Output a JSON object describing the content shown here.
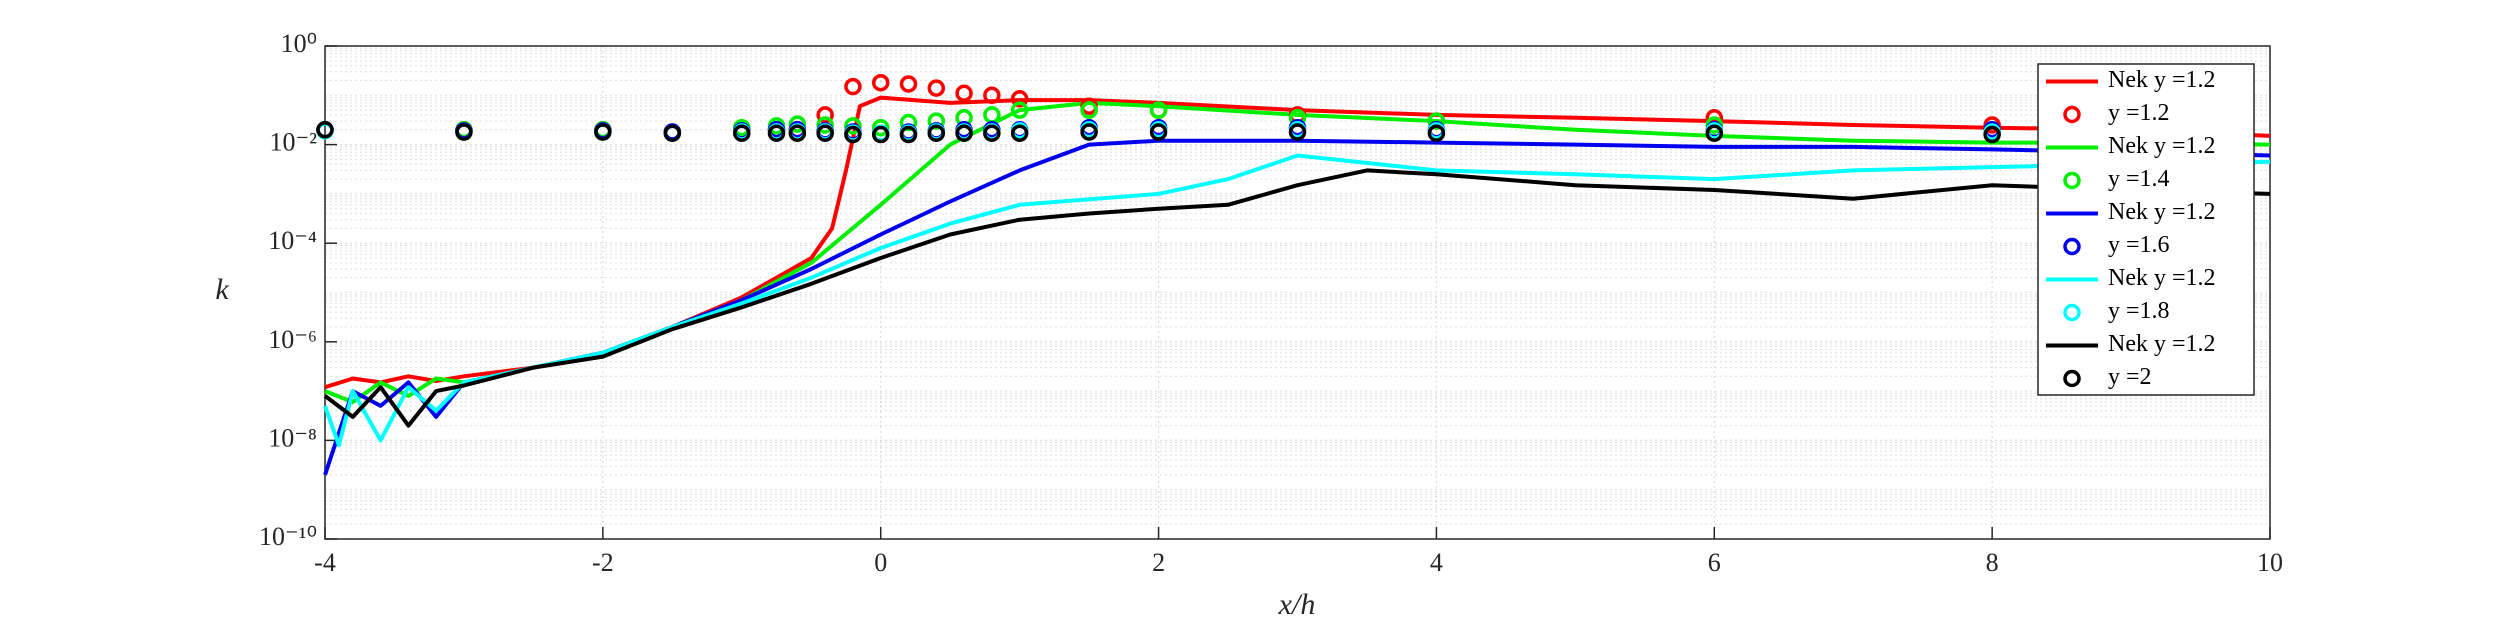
{
  "chart_data": {
    "type": "line",
    "xlabel": "x/h",
    "ylabel": "k",
    "xlim": [
      -4,
      10
    ],
    "xticks": [
      -4,
      -2,
      0,
      2,
      4,
      6,
      8,
      10
    ],
    "ylim": [
      1e-10,
      1
    ],
    "log_y": true,
    "grid": true,
    "legend": "northeast",
    "yticks": [
      {
        "value": 1e-10,
        "label": "10⁻¹⁰"
      },
      {
        "value": 1e-08,
        "label": "10⁻⁸"
      },
      {
        "value": 1e-06,
        "label": "10⁻⁶"
      },
      {
        "value": 0.0001,
        "label": "10⁻⁴"
      },
      {
        "value": 0.01,
        "label": "10⁻²"
      },
      {
        "value": 1,
        "label": "10⁰"
      }
    ],
    "series": [
      {
        "name": "Nek y =1.2",
        "color": "#ff0000",
        "kind": "line",
        "x": [
          -4,
          -3.8,
          -3.6,
          -3.4,
          -3.2,
          -3,
          -2.5,
          -2,
          -1.5,
          -1,
          -0.5,
          -0.35,
          -0.25,
          -0.15,
          0,
          0.5,
          1,
          1.5,
          2,
          3,
          4,
          5,
          6,
          7,
          8,
          9,
          10
        ],
        "values": [
          1.2e-07,
          1.8e-07,
          1.5e-07,
          2e-07,
          1.6e-07,
          2e-07,
          3e-07,
          6e-07,
          2e-06,
          8e-06,
          5e-05,
          0.0002,
          0.003,
          0.06,
          0.09,
          0.07,
          0.08,
          0.08,
          0.07,
          0.05,
          0.04,
          0.035,
          0.03,
          0.025,
          0.022,
          0.02,
          0.015
        ]
      },
      {
        "name": "y =1.2",
        "color": "#ff0000",
        "kind": "scatter",
        "x": [
          -4,
          -3,
          -2,
          -1.5,
          -1,
          -0.75,
          -0.6,
          -0.4,
          -0.2,
          0,
          0.2,
          0.4,
          0.6,
          0.8,
          1,
          1.5,
          2,
          3,
          4,
          6,
          8
        ],
        "values": [
          0.02,
          0.02,
          0.02,
          0.018,
          0.02,
          0.02,
          0.02,
          0.04,
          0.15,
          0.18,
          0.17,
          0.14,
          0.11,
          0.1,
          0.085,
          0.06,
          0.05,
          0.04,
          0.03,
          0.035,
          0.025
        ]
      },
      {
        "name": "Nek y =1.2",
        "color": "#00ee00",
        "kind": "line",
        "x": [
          -4,
          -3.8,
          -3.6,
          -3.4,
          -3.2,
          -3,
          -2.5,
          -2,
          -1.5,
          -1,
          -0.5,
          0,
          0.5,
          1,
          1.5,
          2,
          3,
          4,
          5,
          6,
          7,
          8,
          9,
          10
        ],
        "values": [
          1e-07,
          6e-08,
          1.5e-07,
          8e-08,
          1.8e-07,
          1.5e-07,
          3e-07,
          6e-07,
          2e-06,
          7e-06,
          4e-05,
          0.0006,
          0.01,
          0.05,
          0.07,
          0.06,
          0.04,
          0.03,
          0.02,
          0.015,
          0.012,
          0.011,
          0.011,
          0.01
        ]
      },
      {
        "name": "y =1.4",
        "color": "#00ee00",
        "kind": "scatter",
        "x": [
          -4,
          -3,
          -2,
          -1.5,
          -1,
          -0.75,
          -0.6,
          -0.4,
          -0.2,
          0,
          0.2,
          0.4,
          0.6,
          0.8,
          1,
          1.5,
          2,
          3,
          4,
          6,
          8
        ],
        "values": [
          0.02,
          0.02,
          0.02,
          0.018,
          0.022,
          0.024,
          0.026,
          0.025,
          0.024,
          0.022,
          0.028,
          0.03,
          0.035,
          0.04,
          0.05,
          0.05,
          0.05,
          0.035,
          0.03,
          0.025,
          0.02
        ]
      },
      {
        "name": "Nek y =1.2",
        "color": "#0000ee",
        "kind": "line",
        "x": [
          -4,
          -3.8,
          -3.6,
          -3.4,
          -3.2,
          -3,
          -2.5,
          -2,
          -1.5,
          -1,
          -0.5,
          0,
          0.5,
          1,
          1.5,
          2,
          3,
          4,
          5,
          6,
          7,
          8,
          9,
          10
        ],
        "values": [
          2e-09,
          1e-07,
          5e-08,
          1.5e-07,
          3e-08,
          1.5e-07,
          3e-07,
          6e-07,
          2e-06,
          7e-06,
          3e-05,
          0.00015,
          0.0007,
          0.003,
          0.01,
          0.012,
          0.012,
          0.011,
          0.01,
          0.009,
          0.009,
          0.008,
          0.007,
          0.006
        ]
      },
      {
        "name": "y =1.6",
        "color": "#0000ee",
        "kind": "scatter",
        "x": [
          -4,
          -3,
          -2,
          -1.5,
          -1,
          -0.75,
          -0.6,
          -0.4,
          -0.2,
          0,
          0.2,
          0.4,
          0.6,
          0.8,
          1,
          1.5,
          2,
          3,
          4,
          6,
          8
        ],
        "values": [
          0.02,
          0.019,
          0.019,
          0.018,
          0.019,
          0.02,
          0.02,
          0.019,
          0.018,
          0.017,
          0.018,
          0.019,
          0.02,
          0.02,
          0.02,
          0.022,
          0.022,
          0.022,
          0.02,
          0.02,
          0.02
        ]
      },
      {
        "name": "Nek y =1.2",
        "color": "#00ffff",
        "kind": "line",
        "x": [
          -4,
          -3.9,
          -3.8,
          -3.6,
          -3.4,
          -3.2,
          -3,
          -2.5,
          -2,
          -1.5,
          -1,
          -0.5,
          0,
          0.5,
          1,
          2,
          2.5,
          3,
          4,
          5,
          6,
          7,
          8,
          9,
          10
        ],
        "values": [
          5e-08,
          8e-09,
          1e-07,
          1e-08,
          1.2e-07,
          4e-08,
          1.5e-07,
          3e-07,
          6e-07,
          2e-06,
          6e-06,
          2e-05,
          8e-05,
          0.00025,
          0.0006,
          0.001,
          0.002,
          0.006,
          0.003,
          0.0025,
          0.002,
          0.003,
          0.0035,
          0.004,
          0.0045
        ]
      },
      {
        "name": "y =1.8",
        "color": "#00ffff",
        "kind": "scatter",
        "x": [
          -4,
          -3,
          -2,
          -1.5,
          -1,
          -0.75,
          -0.6,
          -0.4,
          -0.2,
          0,
          0.2,
          0.4,
          0.6,
          0.8,
          1,
          1.5,
          2,
          3,
          4,
          6,
          8
        ],
        "values": [
          0.019,
          0.018,
          0.018,
          0.017,
          0.018,
          0.018,
          0.018,
          0.018,
          0.017,
          0.017,
          0.017,
          0.018,
          0.018,
          0.018,
          0.019,
          0.02,
          0.02,
          0.02,
          0.019,
          0.019,
          0.018
        ]
      },
      {
        "name": "Nek y =1.2",
        "color": "#000000",
        "kind": "line",
        "x": [
          -4,
          -3.8,
          -3.6,
          -3.4,
          -3.2,
          -3,
          -2.5,
          -2,
          -1.5,
          -1,
          -0.5,
          0,
          0.5,
          1,
          1.5,
          2,
          2.5,
          3,
          3.5,
          4,
          5,
          6,
          7,
          8,
          9,
          10
        ],
        "values": [
          8e-08,
          3e-08,
          1.2e-07,
          2e-08,
          1e-07,
          1.3e-07,
          3e-07,
          5e-07,
          1.8e-06,
          5e-06,
          1.5e-05,
          5e-05,
          0.00015,
          0.0003,
          0.0004,
          0.0005,
          0.0006,
          0.0015,
          0.003,
          0.0025,
          0.0015,
          0.0012,
          0.0008,
          0.0015,
          0.0012,
          0.001
        ]
      },
      {
        "name": "y =2",
        "color": "#000000",
        "kind": "scatter",
        "x": [
          -4,
          -3,
          -2,
          -1.5,
          -1,
          -0.75,
          -0.6,
          -0.4,
          -0.2,
          0,
          0.2,
          0.4,
          0.6,
          0.8,
          1,
          1.5,
          2,
          3,
          4,
          6,
          8
        ],
        "values": [
          0.02,
          0.018,
          0.018,
          0.017,
          0.017,
          0.017,
          0.017,
          0.017,
          0.016,
          0.016,
          0.016,
          0.017,
          0.017,
          0.017,
          0.017,
          0.018,
          0.018,
          0.018,
          0.017,
          0.017,
          0.016
        ]
      }
    ]
  }
}
